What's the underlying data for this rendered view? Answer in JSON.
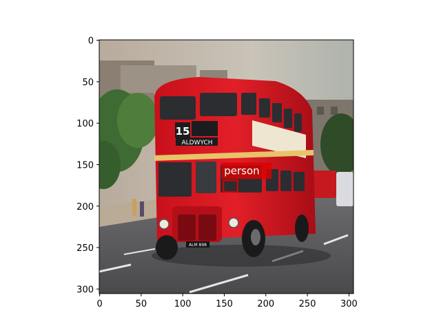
{
  "image": {
    "description_icon": "photo-icon",
    "extent": {
      "x": [
        0,
        306
      ],
      "y": [
        306,
        0
      ]
    }
  },
  "axes": {
    "x_ticks": [
      0,
      50,
      100,
      150,
      200,
      250,
      300
    ],
    "y_ticks": [
      0,
      50,
      100,
      150,
      200,
      250,
      300
    ]
  },
  "detections": [
    {
      "label": "person",
      "box_xywh": [
        149,
        169,
        17,
        14
      ],
      "color": "#e00000"
    }
  ],
  "bus_text": {
    "route_number": "15",
    "destination": "ALDWYCH",
    "plate": "ALM 898"
  },
  "colors": {
    "bus_red": "#d8141c",
    "box": "#e00000"
  }
}
